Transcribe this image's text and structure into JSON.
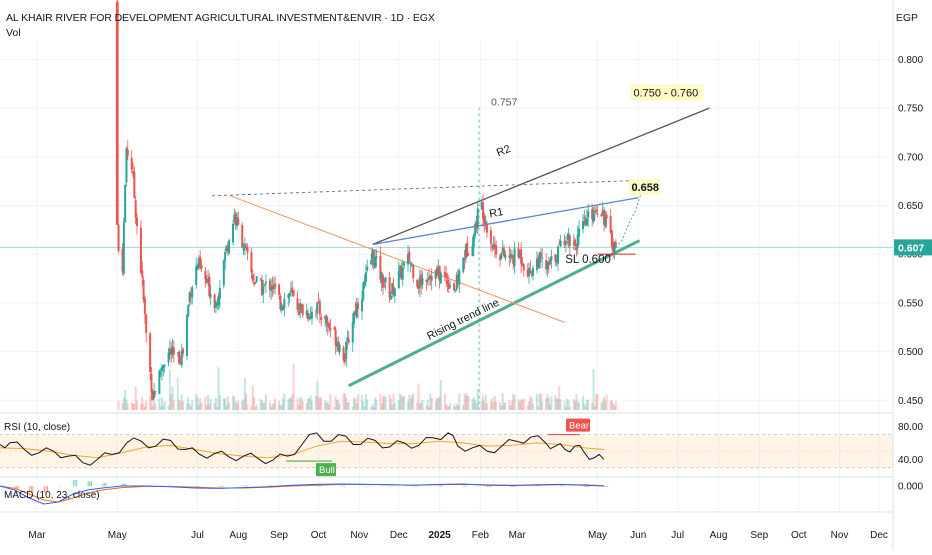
{
  "header": {
    "title": "AL KHAIR RIVER FOR DEVELOPMENT AGRICULTURAL INVESTMENT&ENVIR · 1D · EGX",
    "volume_label": "Vol",
    "currency": "EGP"
  },
  "colors": {
    "up": "#26a69a",
    "down": "#ef5350",
    "r2": "#555555",
    "r1": "#5b7fd6",
    "support": "#4caf88",
    "downtrend": "#f0935a",
    "sl": "#e53935",
    "rsi": "#131722",
    "rsi_ma": "#f5a623",
    "macd": "#2962ff",
    "signal": "#ff6d00",
    "price_badge": "#26a69a"
  },
  "chart_data": {
    "type": "candlestick",
    "x_axis": {
      "tick_labels": [
        "Mar",
        "May",
        "Jul",
        "Aug",
        "Sep",
        "Oct",
        "Nov",
        "Dec",
        "2025",
        "Feb",
        "Mar",
        "May",
        "Jun",
        "Jul",
        "Aug",
        "Sep",
        "Oct",
        "Nov",
        "Dec"
      ],
      "tick_dates": [
        "2024-03-01",
        "2024-05-01",
        "2024-07-01",
        "2024-08-01",
        "2024-09-01",
        "2024-10-01",
        "2024-11-01",
        "2024-12-01",
        "2025-01-01",
        "2025-02-01",
        "2025-03-01",
        "2025-05-01",
        "2025-06-01",
        "2025-07-01",
        "2025-08-01",
        "2025-09-01",
        "2025-10-01",
        "2025-11-01",
        "2025-12-01"
      ]
    },
    "y_axis": {
      "tick_labels": [
        "0.800",
        "0.750",
        "0.700",
        "0.650",
        "0.600",
        "0.550",
        "0.500",
        "0.450"
      ],
      "range": [
        0.44,
        0.82
      ]
    },
    "last_price": "0.607",
    "price_path": [
      [
        "2024-05-01",
        0.63
      ],
      [
        "2024-05-04",
        0.55
      ],
      [
        "2024-05-08",
        0.71
      ],
      [
        "2024-05-12",
        0.69
      ],
      [
        "2024-05-16",
        0.63
      ],
      [
        "2024-05-20",
        0.57
      ],
      [
        "2024-05-24",
        0.5
      ],
      [
        "2024-05-28",
        0.455
      ],
      [
        "2024-06-01",
        0.47
      ],
      [
        "2024-06-05",
        0.49
      ],
      [
        "2024-06-10",
        0.5
      ],
      [
        "2024-06-15",
        0.49
      ],
      [
        "2024-06-20",
        0.5
      ],
      [
        "2024-06-25",
        0.56
      ],
      [
        "2024-07-01",
        0.59
      ],
      [
        "2024-07-08",
        0.57
      ],
      [
        "2024-07-15",
        0.55
      ],
      [
        "2024-07-22",
        0.6
      ],
      [
        "2024-07-29",
        0.64
      ],
      [
        "2024-08-05",
        0.61
      ],
      [
        "2024-08-12",
        0.575
      ],
      [
        "2024-08-19",
        0.565
      ],
      [
        "2024-08-26",
        0.57
      ],
      [
        "2024-09-02",
        0.55
      ],
      [
        "2024-09-09",
        0.56
      ],
      [
        "2024-09-16",
        0.545
      ],
      [
        "2024-09-23",
        0.54
      ],
      [
        "2024-09-30",
        0.545
      ],
      [
        "2024-10-07",
        0.53
      ],
      [
        "2024-10-14",
        0.515
      ],
      [
        "2024-10-21",
        0.495
      ],
      [
        "2024-10-28",
        0.54
      ],
      [
        "2024-11-04",
        0.565
      ],
      [
        "2024-11-11",
        0.6
      ],
      [
        "2024-11-18",
        0.575
      ],
      [
        "2024-11-25",
        0.56
      ],
      [
        "2024-12-02",
        0.58
      ],
      [
        "2024-12-09",
        0.595
      ],
      [
        "2024-12-16",
        0.57
      ],
      [
        "2024-12-23",
        0.58
      ],
      [
        "2024-12-30",
        0.58
      ],
      [
        "2025-01-06",
        0.575
      ],
      [
        "2025-01-13",
        0.565
      ],
      [
        "2025-01-20",
        0.6
      ],
      [
        "2025-01-27",
        0.62
      ],
      [
        "2025-02-01",
        0.655
      ],
      [
        "2025-02-05",
        0.635
      ],
      [
        "2025-02-10",
        0.61
      ],
      [
        "2025-02-17",
        0.6
      ],
      [
        "2025-02-24",
        0.595
      ],
      [
        "2025-03-03",
        0.6
      ],
      [
        "2025-03-10",
        0.58
      ],
      [
        "2025-03-17",
        0.595
      ],
      [
        "2025-03-24",
        0.585
      ],
      [
        "2025-03-31",
        0.6
      ],
      [
        "2025-04-07",
        0.62
      ],
      [
        "2025-04-14",
        0.61
      ],
      [
        "2025-04-21",
        0.63
      ],
      [
        "2025-04-28",
        0.645
      ],
      [
        "2025-05-03",
        0.65
      ],
      [
        "2025-05-07",
        0.635
      ],
      [
        "2025-05-11",
        0.615
      ],
      [
        "2025-05-15",
        0.607
      ]
    ],
    "drawings": [
      {
        "name": "r2-line",
        "label": "R2",
        "from": [
          "2024-11-11",
          0.61
        ],
        "to": [
          "2025-07-25",
          0.75
        ]
      },
      {
        "name": "r1-line",
        "label": "R1",
        "from": [
          "2024-11-11",
          0.61
        ],
        "to": [
          "2025-06-01",
          0.658
        ]
      },
      {
        "name": "rising-trend-line",
        "label": "Rising trend line",
        "from": [
          "2024-10-24",
          0.465
        ],
        "to": [
          "2025-06-02",
          0.614
        ]
      },
      {
        "name": "downtrend-line",
        "label": "",
        "from": [
          "2024-07-26",
          0.66
        ],
        "to": [
          "2025-04-06",
          0.53
        ]
      },
      {
        "name": "top-dotted-line",
        "label": "",
        "from": [
          "2024-07-12",
          0.66
        ],
        "to": [
          "2025-06-05",
          0.676
        ]
      }
    ],
    "labels": {
      "target": "0.750 - 0.760",
      "level_658": "0.658",
      "peak_757": "0.757",
      "r1": "R1",
      "r2": "R2",
      "sl": "SL 0.600",
      "rising_trend": "Rising trend line"
    },
    "stop_loss": 0.6,
    "rsi": {
      "title": "RSI (10, close)",
      "tick_labels": [
        "80.00",
        "40.00"
      ],
      "range": [
        20,
        90
      ],
      "band": [
        30,
        70
      ],
      "series": [
        [
          0,
          58
        ],
        [
          2,
          60
        ],
        [
          5,
          52
        ],
        [
          8,
          48
        ],
        [
          11,
          50
        ],
        [
          14,
          44
        ],
        [
          17,
          36
        ],
        [
          20,
          40
        ],
        [
          23,
          46
        ],
        [
          26,
          60
        ],
        [
          29,
          62
        ],
        [
          32,
          56
        ],
        [
          35,
          63
        ],
        [
          38,
          52
        ],
        [
          41,
          46
        ],
        [
          44,
          47
        ],
        [
          47,
          43
        ],
        [
          50,
          44
        ],
        [
          53,
          41
        ],
        [
          56,
          39
        ],
        [
          59,
          44
        ],
        [
          62,
          58
        ],
        [
          65,
          72
        ],
        [
          68,
          62
        ],
        [
          71,
          68
        ],
        [
          74,
          58
        ],
        [
          77,
          63
        ],
        [
          80,
          55
        ],
        [
          83,
          60
        ],
        [
          86,
          57
        ],
        [
          89,
          66
        ],
        [
          92,
          72
        ],
        [
          94,
          56
        ],
        [
          97,
          54
        ],
        [
          100,
          50
        ],
        [
          103,
          56
        ],
        [
          106,
          62
        ],
        [
          109,
          67
        ],
        [
          112,
          60
        ],
        [
          114,
          56
        ],
        [
          116,
          52
        ],
        [
          118,
          56
        ],
        [
          120,
          48
        ],
        [
          122,
          42
        ],
        [
          124,
          40
        ]
      ],
      "ma": [
        [
          0,
          54
        ],
        [
          5,
          53
        ],
        [
          10,
          50
        ],
        [
          15,
          45
        ],
        [
          20,
          42
        ],
        [
          25,
          48
        ],
        [
          30,
          55
        ],
        [
          35,
          57
        ],
        [
          40,
          52
        ],
        [
          45,
          47
        ],
        [
          50,
          44
        ],
        [
          55,
          42
        ],
        [
          60,
          46
        ],
        [
          65,
          56
        ],
        [
          70,
          62
        ],
        [
          75,
          61
        ],
        [
          80,
          59
        ],
        [
          85,
          59
        ],
        [
          90,
          62
        ],
        [
          95,
          60
        ],
        [
          100,
          56
        ],
        [
          105,
          57
        ],
        [
          110,
          60
        ],
        [
          115,
          58
        ],
        [
          120,
          54
        ],
        [
          124,
          52
        ]
      ],
      "bull_label": "Bull",
      "bear_label": "Bear"
    },
    "macd": {
      "title": "MACD (10, 23, close)",
      "tick_label": "0.000",
      "range": [
        -0.06,
        0.02
      ],
      "series_macd": [
        [
          0,
          0.0
        ],
        [
          3,
          -0.01
        ],
        [
          6,
          -0.03
        ],
        [
          9,
          -0.045
        ],
        [
          12,
          -0.04
        ],
        [
          15,
          -0.02
        ],
        [
          18,
          -0.01
        ],
        [
          21,
          -0.005
        ],
        [
          25,
          0.0
        ],
        [
          30,
          0.0
        ],
        [
          35,
          -0.002
        ],
        [
          40,
          -0.005
        ],
        [
          45,
          -0.006
        ],
        [
          50,
          -0.004
        ],
        [
          55,
          -0.002
        ],
        [
          60,
          0.002
        ],
        [
          65,
          0.004
        ],
        [
          70,
          0.005
        ],
        [
          75,
          0.004
        ],
        [
          80,
          0.003
        ],
        [
          85,
          0.002
        ],
        [
          90,
          0.004
        ],
        [
          95,
          0.005
        ],
        [
          100,
          0.002
        ],
        [
          105,
          0.001
        ],
        [
          110,
          0.003
        ],
        [
          115,
          0.004
        ],
        [
          120,
          0.002
        ],
        [
          124,
          0.0
        ]
      ],
      "series_signal": [
        [
          0,
          0.0
        ],
        [
          3,
          -0.006
        ],
        [
          6,
          -0.02
        ],
        [
          9,
          -0.035
        ],
        [
          12,
          -0.04
        ],
        [
          15,
          -0.03
        ],
        [
          18,
          -0.018
        ],
        [
          21,
          -0.01
        ],
        [
          25,
          -0.004
        ],
        [
          30,
          -0.001
        ],
        [
          35,
          -0.001
        ],
        [
          40,
          -0.003
        ],
        [
          45,
          -0.005
        ],
        [
          50,
          -0.005
        ],
        [
          55,
          -0.003
        ],
        [
          60,
          0.0
        ],
        [
          65,
          0.002
        ],
        [
          70,
          0.004
        ],
        [
          75,
          0.004
        ],
        [
          80,
          0.003
        ],
        [
          85,
          0.002
        ],
        [
          90,
          0.003
        ],
        [
          95,
          0.004
        ],
        [
          100,
          0.003
        ],
        [
          105,
          0.002
        ],
        [
          110,
          0.002
        ],
        [
          115,
          0.003
        ],
        [
          120,
          0.003
        ],
        [
          124,
          0.001
        ]
      ]
    }
  }
}
